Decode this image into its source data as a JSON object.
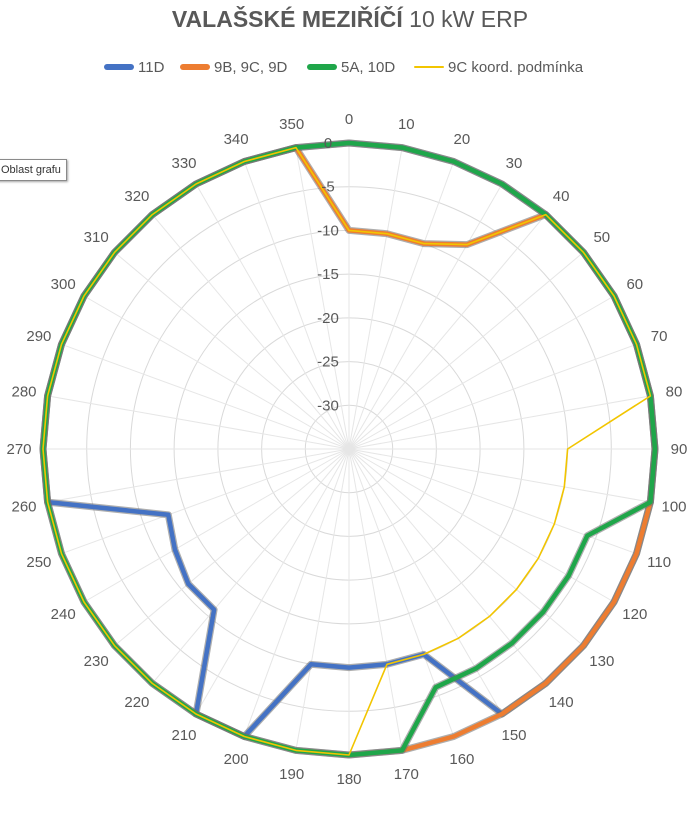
{
  "chart_data": {
    "type": "radar",
    "title_bold": "VALAŠSKÉ MEZIŘÍČÍ",
    "title_rest": " 10 kW ERP",
    "categories": [
      "0",
      "10",
      "20",
      "30",
      "40",
      "50",
      "60",
      "70",
      "80",
      "90",
      "100",
      "110",
      "120",
      "130",
      "140",
      "150",
      "160",
      "170",
      "180",
      "190",
      "200",
      "210",
      "220",
      "230",
      "240",
      "250",
      "260",
      "270",
      "280",
      "290",
      "300",
      "310",
      "320",
      "330",
      "340",
      "350"
    ],
    "radial_ticks": [
      "0",
      "-5",
      "-10",
      "-15",
      "-20",
      "-25",
      "-30"
    ],
    "rlim": [
      -35,
      0
    ],
    "legend_position": "top",
    "series": [
      {
        "name": "11D",
        "color": "#4472C4",
        "stroke": "thick",
        "values": [
          0,
          0,
          0,
          0,
          0,
          0,
          0,
          0,
          0,
          0,
          0,
          0,
          0,
          0,
          0,
          0,
          -10,
          -10,
          -10,
          -10,
          0,
          0,
          -11,
          -11,
          -12,
          -13,
          0,
          0,
          0,
          0,
          0,
          0,
          0,
          0,
          0,
          0
        ]
      },
      {
        "name": "9B, 9C, 9D",
        "color": "#ED7D31",
        "stroke": "thick",
        "values": [
          -10,
          -10,
          -10,
          -8,
          0,
          0,
          0,
          0,
          0,
          0,
          0,
          0,
          0,
          0,
          0,
          0,
          0,
          0,
          0,
          0,
          0,
          0,
          0,
          0,
          0,
          0,
          0,
          0,
          0,
          0,
          0,
          0,
          0,
          0,
          0,
          0
        ]
      },
      {
        "name": "5A, 10D",
        "color": "#1FA64A",
        "stroke": "thick",
        "values": [
          0,
          0,
          0,
          0,
          0,
          0,
          0,
          0,
          0,
          0,
          0,
          -6,
          -6,
          -6,
          -6,
          -6,
          -6,
          0,
          0,
          0,
          0,
          0,
          0,
          0,
          0,
          0,
          0,
          0,
          0,
          0,
          0,
          0,
          0,
          0,
          0,
          0
        ]
      },
      {
        "name": "9C koord. podmínka",
        "color": "#F2C500",
        "stroke": "thin",
        "values": [
          -10,
          -10,
          -10,
          -8,
          0,
          0,
          0,
          0,
          0,
          -10,
          -10,
          -10,
          -10,
          -10,
          -10,
          -10,
          -10,
          -10,
          0,
          0,
          0,
          0,
          0,
          0,
          0,
          0,
          0,
          0,
          0,
          0,
          0,
          0,
          0,
          0,
          0,
          0
        ]
      }
    ]
  },
  "tooltip": {
    "text": "Oblast grafu"
  }
}
